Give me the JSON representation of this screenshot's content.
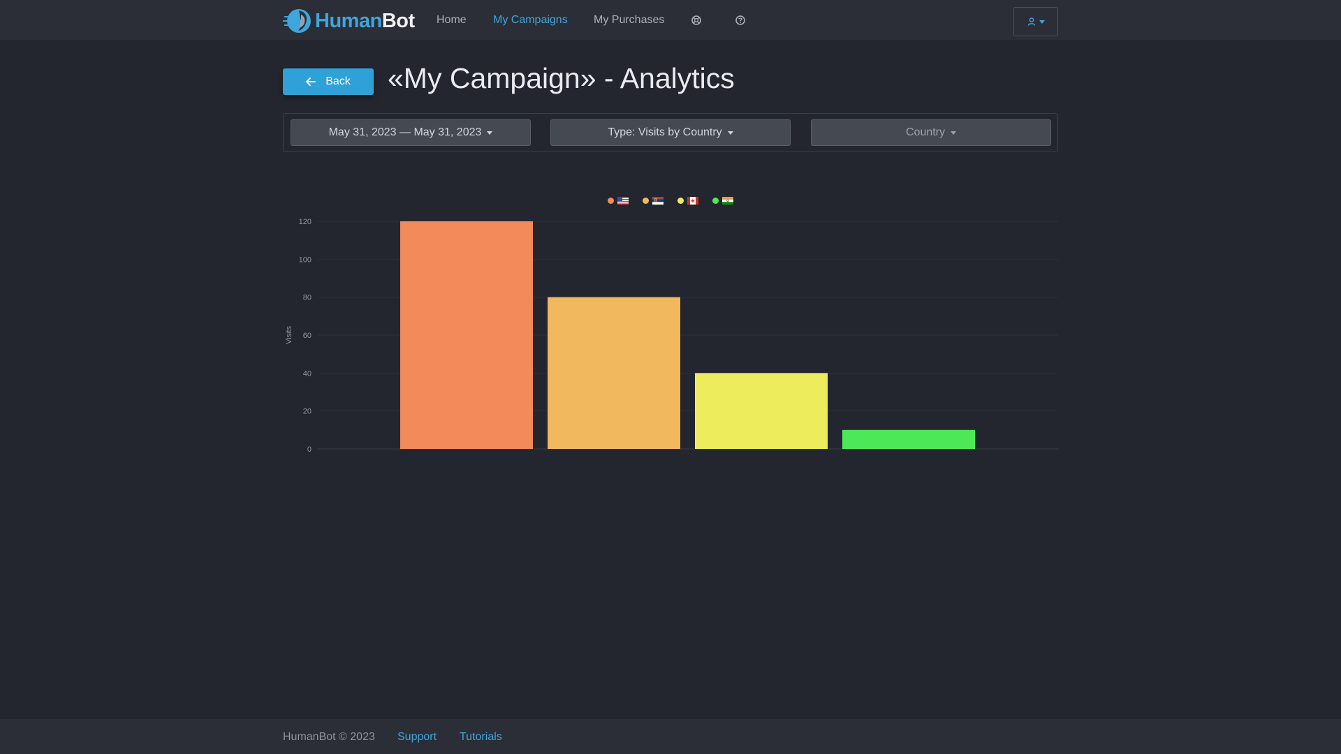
{
  "navbar": {
    "brand_human": "Human",
    "brand_bot": "Bot",
    "links": [
      {
        "label": "Home"
      },
      {
        "label": "My Campaigns",
        "active": true
      },
      {
        "label": "My Purchases"
      }
    ],
    "icons": [
      "support-icon",
      "help-icon"
    ],
    "user_menu_icon": "user-icon"
  },
  "header": {
    "back_label": "Back",
    "title": "«My Campaign» - Analytics"
  },
  "filters": {
    "date_range": "May 31, 2023 — May 31, 2023",
    "type": "Type: Visits by Country",
    "country": "Country"
  },
  "chart_data": {
    "type": "bar",
    "ylabel": "Visits",
    "xlabel": "",
    "ylim": [
      0,
      120
    ],
    "yticks": [
      "0",
      "20",
      "40",
      "60",
      "80",
      "100",
      "120"
    ],
    "legend_position": "top-center",
    "categories": [
      "US",
      "RS",
      "CA",
      "IN"
    ],
    "series": [
      {
        "name": "US",
        "value": 120,
        "color": "#f28a5a"
      },
      {
        "name": "RS",
        "value": 80,
        "color": "#f2b85e"
      },
      {
        "name": "CA",
        "value": 40,
        "color": "#ecec5c"
      },
      {
        "name": "IN",
        "value": 10,
        "color": "#4ce858"
      }
    ],
    "grid": true
  },
  "footer": {
    "copyright": "HumanBot © 2023",
    "links": [
      "Support",
      "Tutorials"
    ]
  },
  "colors": {
    "accent": "#3ea6dc",
    "background": "#23262f",
    "navbar": "#2b2e37"
  }
}
